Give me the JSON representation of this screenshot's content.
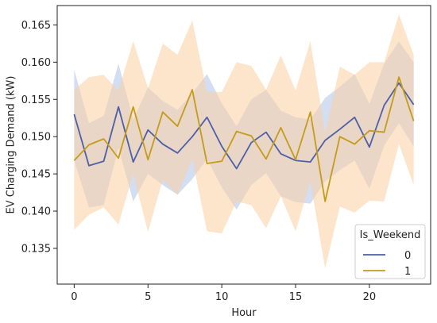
{
  "chart_data": {
    "type": "line",
    "xlabel": "Hour",
    "ylabel": "EV Charging Demand (kW)",
    "xlim": [
      -1.15,
      24.15
    ],
    "ylim": [
      0.1302,
      0.1676
    ],
    "xticks": [
      0,
      5,
      10,
      15,
      20
    ],
    "yticks": [
      0.135,
      0.14,
      0.145,
      0.15,
      0.155,
      0.16,
      0.165
    ],
    "ytick_labels": [
      "0.135",
      "0.140",
      "0.145",
      "0.150",
      "0.155",
      "0.160",
      "0.165"
    ],
    "grid": false,
    "legend": {
      "title": "Is_Weekend",
      "placement": "lower-right"
    },
    "x": [
      0,
      1,
      2,
      3,
      4,
      5,
      6,
      7,
      8,
      9,
      10,
      11,
      12,
      13,
      14,
      15,
      16,
      17,
      18,
      19,
      20,
      21,
      22,
      23
    ],
    "series": [
      {
        "name": "0",
        "color": "#4c5fa8",
        "band_color": "#aec3e8",
        "values": [
          0.153,
          0.1461,
          0.1467,
          0.154,
          0.1466,
          0.1509,
          0.149,
          0.1478,
          0.15,
          0.1526,
          0.1487,
          0.1457,
          0.1492,
          0.1506,
          0.1477,
          0.1468,
          0.1466,
          0.1495,
          0.151,
          0.1526,
          0.1486,
          0.1542,
          0.1572,
          0.1543
        ],
        "lower": [
          0.1468,
          0.1405,
          0.1408,
          0.1485,
          0.1413,
          0.145,
          0.1435,
          0.1422,
          0.1443,
          0.147,
          0.1432,
          0.1402,
          0.1435,
          0.1451,
          0.142,
          0.1412,
          0.141,
          0.144,
          0.1455,
          0.1468,
          0.143,
          0.1488,
          0.1518,
          0.1487
        ],
        "upper": [
          0.159,
          0.1518,
          0.1528,
          0.1598,
          0.1523,
          0.1566,
          0.1548,
          0.1536,
          0.1558,
          0.1584,
          0.1545,
          0.1514,
          0.155,
          0.1563,
          0.1535,
          0.1526,
          0.1523,
          0.1552,
          0.1567,
          0.1584,
          0.1544,
          0.1598,
          0.1628,
          0.16
        ]
      },
      {
        "name": "1",
        "color": "#c49c1a",
        "band_color": "#fbd0a3",
        "values": [
          0.1468,
          0.1489,
          0.1497,
          0.1471,
          0.154,
          0.1469,
          0.1533,
          0.1514,
          0.1563,
          0.1464,
          0.1467,
          0.1507,
          0.1501,
          0.147,
          0.1512,
          0.1469,
          0.1533,
          0.1413,
          0.15,
          0.149,
          0.1508,
          0.1506,
          0.158,
          0.1521
        ],
        "lower": [
          0.1375,
          0.1395,
          0.1405,
          0.1382,
          0.145,
          0.1372,
          0.1442,
          0.1422,
          0.147,
          0.1373,
          0.137,
          0.1413,
          0.1408,
          0.1377,
          0.142,
          0.1373,
          0.144,
          0.1323,
          0.1406,
          0.1398,
          0.1414,
          0.1413,
          0.149,
          0.1435
        ],
        "upper": [
          0.1563,
          0.158,
          0.1583,
          0.1562,
          0.1628,
          0.1565,
          0.1625,
          0.161,
          0.1656,
          0.156,
          0.156,
          0.16,
          0.1595,
          0.1563,
          0.1609,
          0.1562,
          0.1628,
          0.1505,
          0.1594,
          0.1583,
          0.16,
          0.16,
          0.1664,
          0.161
        ]
      }
    ]
  }
}
